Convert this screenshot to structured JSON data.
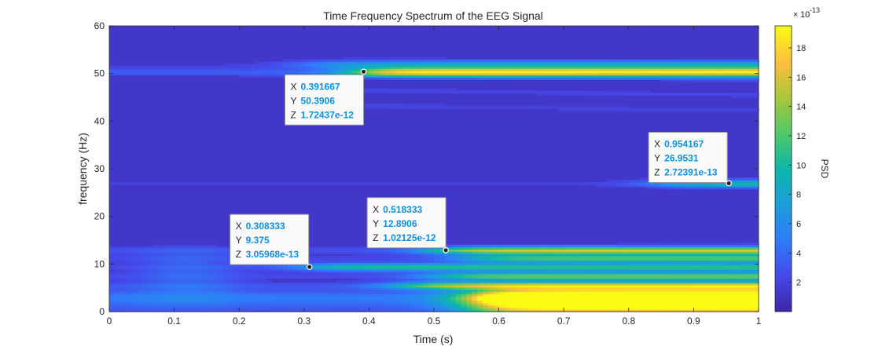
{
  "chart_data": {
    "type": "heatmap",
    "title": "Time Frequency Spectrum of the EEG Signal",
    "xlabel": "Time (s)",
    "ylabel": "frequency (Hz)",
    "xlim": [
      0,
      1
    ],
    "ylim": [
      0,
      60
    ],
    "xticks": [
      "0",
      "0.1",
      "0.2",
      "0.3",
      "0.4",
      "0.5",
      "0.6",
      "0.7",
      "0.8",
      "0.9",
      "1"
    ],
    "xtick_values": [
      0,
      0.1,
      0.2,
      0.3,
      0.4,
      0.5,
      0.6,
      0.7,
      0.8,
      0.9,
      1
    ],
    "yticks": [
      "0",
      "10",
      "20",
      "30",
      "40",
      "50",
      "60"
    ],
    "ytick_values": [
      0,
      10,
      20,
      30,
      40,
      50,
      60
    ],
    "colormap": "parula",
    "colorbar": {
      "label": "PSD",
      "exponent": "10",
      "exponent_power": "-13",
      "range": [
        0,
        19.5
      ],
      "ticks": [
        "2",
        "4",
        "6",
        "8",
        "10",
        "12",
        "14",
        "16",
        "18"
      ],
      "tick_values": [
        2,
        4,
        6,
        8,
        10,
        12,
        14,
        16,
        18
      ]
    },
    "bands": [
      {
        "f": 1.5,
        "t0": 0.56,
        "level": 19.5,
        "width": 2.8
      },
      {
        "f": 3.2,
        "t0": 0.58,
        "level": 19.0,
        "width": 1.4
      },
      {
        "f": 5.5,
        "t0": 0.45,
        "level": 14.0,
        "width": 0.8
      },
      {
        "f": 7.5,
        "t0": 0.5,
        "level": 12.0,
        "width": 0.8
      },
      {
        "f": 9.4,
        "t0": 0.3,
        "level": 10.0,
        "width": 0.8
      },
      {
        "f": 11.2,
        "t0": 0.55,
        "level": 11.0,
        "width": 0.8
      },
      {
        "f": 12.9,
        "t0": 0.5,
        "level": 15.0,
        "width": 0.8
      },
      {
        "f": 26.9,
        "t0": 0.85,
        "level": 9.0,
        "width": 0.8
      },
      {
        "f": 50.4,
        "t0": 0.38,
        "level": 18.0,
        "width": 1.0
      },
      {
        "f": 52.0,
        "t0": 0.3,
        "level": 6.0,
        "width": 0.8
      }
    ],
    "datatips": [
      {
        "X": "0.391667",
        "Y": "50.3906",
        "Z": "1.72437e-12",
        "x": 0.391667,
        "y": 50.3906
      },
      {
        "X": "0.308333",
        "Y": "9.375",
        "Z": "3.05968e-13",
        "x": 0.308333,
        "y": 9.375
      },
      {
        "X": "0.518333",
        "Y": "12.8906",
        "Z": "1.02125e-12",
        "x": 0.518333,
        "y": 12.8906
      },
      {
        "X": "0.954167",
        "Y": "26.9531",
        "Z": "2.72391e-13",
        "x": 0.954167,
        "y": 26.9531
      }
    ],
    "datatip_keys": {
      "x": "X",
      "y": "Y",
      "z": "Z"
    }
  }
}
